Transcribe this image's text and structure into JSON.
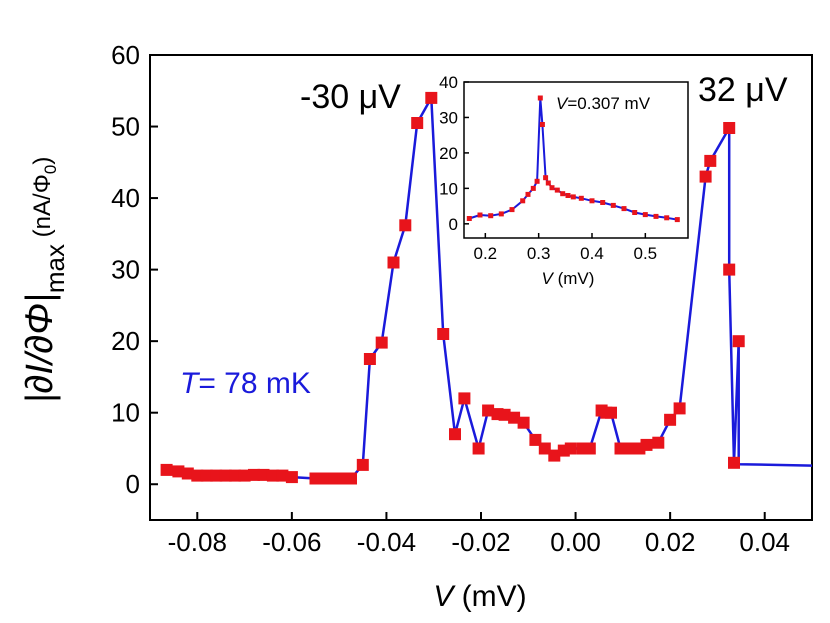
{
  "chart_data": [
    {
      "type": "line",
      "xlabel_var": "V",
      "xlabel_unit": " (mV)",
      "ylabel_main": "|∂I/∂Φ|",
      "ylabel_sub": "max",
      "ylabel_unit": " (nA/Φ",
      "ylabel_unit_sub": "0",
      "ylabel_unit_close": ")",
      "xlim": [
        -0.09,
        0.05
      ],
      "ylim": [
        -5,
        60
      ],
      "xticks": [
        -0.08,
        -0.06,
        -0.04,
        -0.02,
        0.0,
        0.02,
        0.04
      ],
      "xtick_labels": [
        "-0.08",
        "-0.06",
        "-0.04",
        "-0.02",
        "0.00",
        "0.02",
        "0.04"
      ],
      "yticks": [
        0,
        10,
        20,
        30,
        40,
        50,
        60
      ],
      "ytick_labels": [
        "0",
        "10",
        "20",
        "30",
        "40",
        "50",
        "60"
      ],
      "annotations": {
        "left_peak": "-30 μV",
        "right_peak": "32 μV",
        "temperature_var": "T",
        "temperature_value": "= 78 mK"
      },
      "line_color": "#1a1adb",
      "marker_color": "#e8141b",
      "series": [
        {
          "name": "data",
          "x": [
            -0.0865,
            -0.084,
            -0.082,
            -0.08,
            -0.078,
            -0.076,
            -0.074,
            -0.072,
            -0.07,
            -0.068,
            -0.066,
            -0.064,
            -0.062,
            -0.06,
            -0.055,
            -0.053,
            -0.051,
            -0.049,
            -0.0475,
            -0.045,
            -0.0435,
            -0.041,
            -0.0385,
            -0.036,
            -0.0335,
            -0.0305,
            -0.028,
            -0.0255,
            -0.0235,
            -0.0205,
            -0.0185,
            -0.0165,
            -0.015,
            -0.013,
            -0.011,
            -0.0085,
            -0.0065,
            -0.0045,
            -0.0025,
            -0.001,
            0.0015,
            0.003,
            0.0055,
            0.0065,
            0.0075,
            0.0095,
            0.0115,
            0.0135,
            0.015,
            0.0175,
            0.02,
            0.022,
            0.0275,
            0.0285,
            0.0325,
            0.0325,
            0.0335,
            0.0345,
            0.0345,
            0.05
          ],
          "y": [
            2.0,
            1.8,
            1.5,
            1.2,
            1.2,
            1.2,
            1.2,
            1.2,
            1.2,
            1.3,
            1.3,
            1.2,
            1.2,
            1.0,
            0.8,
            0.8,
            0.8,
            0.8,
            0.8,
            2.7,
            17.5,
            19.8,
            31.0,
            36.2,
            50.5,
            54.0,
            21.0,
            7.0,
            12.0,
            5.0,
            10.3,
            9.8,
            9.7,
            9.3,
            8.6,
            6.2,
            5.0,
            4.0,
            4.7,
            5.0,
            5.0,
            5.0,
            10.3,
            10.0,
            10.0,
            5.0,
            5.0,
            5.0,
            5.5,
            5.8,
            9.0,
            10.6,
            43.0,
            45.2,
            49.8,
            30.0,
            3.0,
            20.0,
            2.8,
            2.6
          ],
          "markers": [
            true,
            true,
            true,
            true,
            true,
            true,
            true,
            true,
            true,
            true,
            true,
            true,
            true,
            true,
            true,
            true,
            true,
            true,
            true,
            true,
            true,
            true,
            true,
            true,
            true,
            true,
            true,
            true,
            true,
            true,
            true,
            true,
            true,
            true,
            true,
            true,
            true,
            true,
            true,
            true,
            true,
            true,
            true,
            true,
            true,
            true,
            true,
            true,
            true,
            true,
            true,
            true,
            true,
            true,
            true,
            true,
            true,
            true,
            false,
            false
          ]
        }
      ]
    },
    {
      "type": "line",
      "name": "inset",
      "xlabel_var": "V",
      "xlabel_unit": " (mV)",
      "xlim": [
        0.16,
        0.58
      ],
      "ylim": [
        -4,
        40
      ],
      "xticks": [
        0.2,
        0.3,
        0.4,
        0.5
      ],
      "xtick_labels": [
        "0.2",
        "0.3",
        "0.4",
        "0.5"
      ],
      "yticks": [
        0,
        10,
        20,
        30,
        40
      ],
      "ytick_labels": [
        "0",
        "10",
        "20",
        "30",
        "40"
      ],
      "annotation_var": "V",
      "annotation_value": "=0.307 mV",
      "series": [
        {
          "name": "inset-data",
          "x": [
            0.17,
            0.19,
            0.21,
            0.23,
            0.25,
            0.27,
            0.28,
            0.29,
            0.297,
            0.303,
            0.307,
            0.313,
            0.318,
            0.325,
            0.335,
            0.345,
            0.355,
            0.365,
            0.38,
            0.4,
            0.42,
            0.44,
            0.46,
            0.48,
            0.5,
            0.52,
            0.54,
            0.56
          ],
          "y": [
            1.5,
            2.5,
            2.3,
            2.8,
            4.0,
            6.5,
            8.3,
            10.0,
            12.0,
            35.5,
            28.0,
            13.0,
            11.5,
            10.2,
            9.5,
            8.5,
            8.0,
            7.6,
            7.2,
            6.5,
            6.0,
            5.2,
            4.3,
            3.2,
            2.6,
            2.1,
            1.7,
            1.2
          ]
        }
      ]
    }
  ]
}
